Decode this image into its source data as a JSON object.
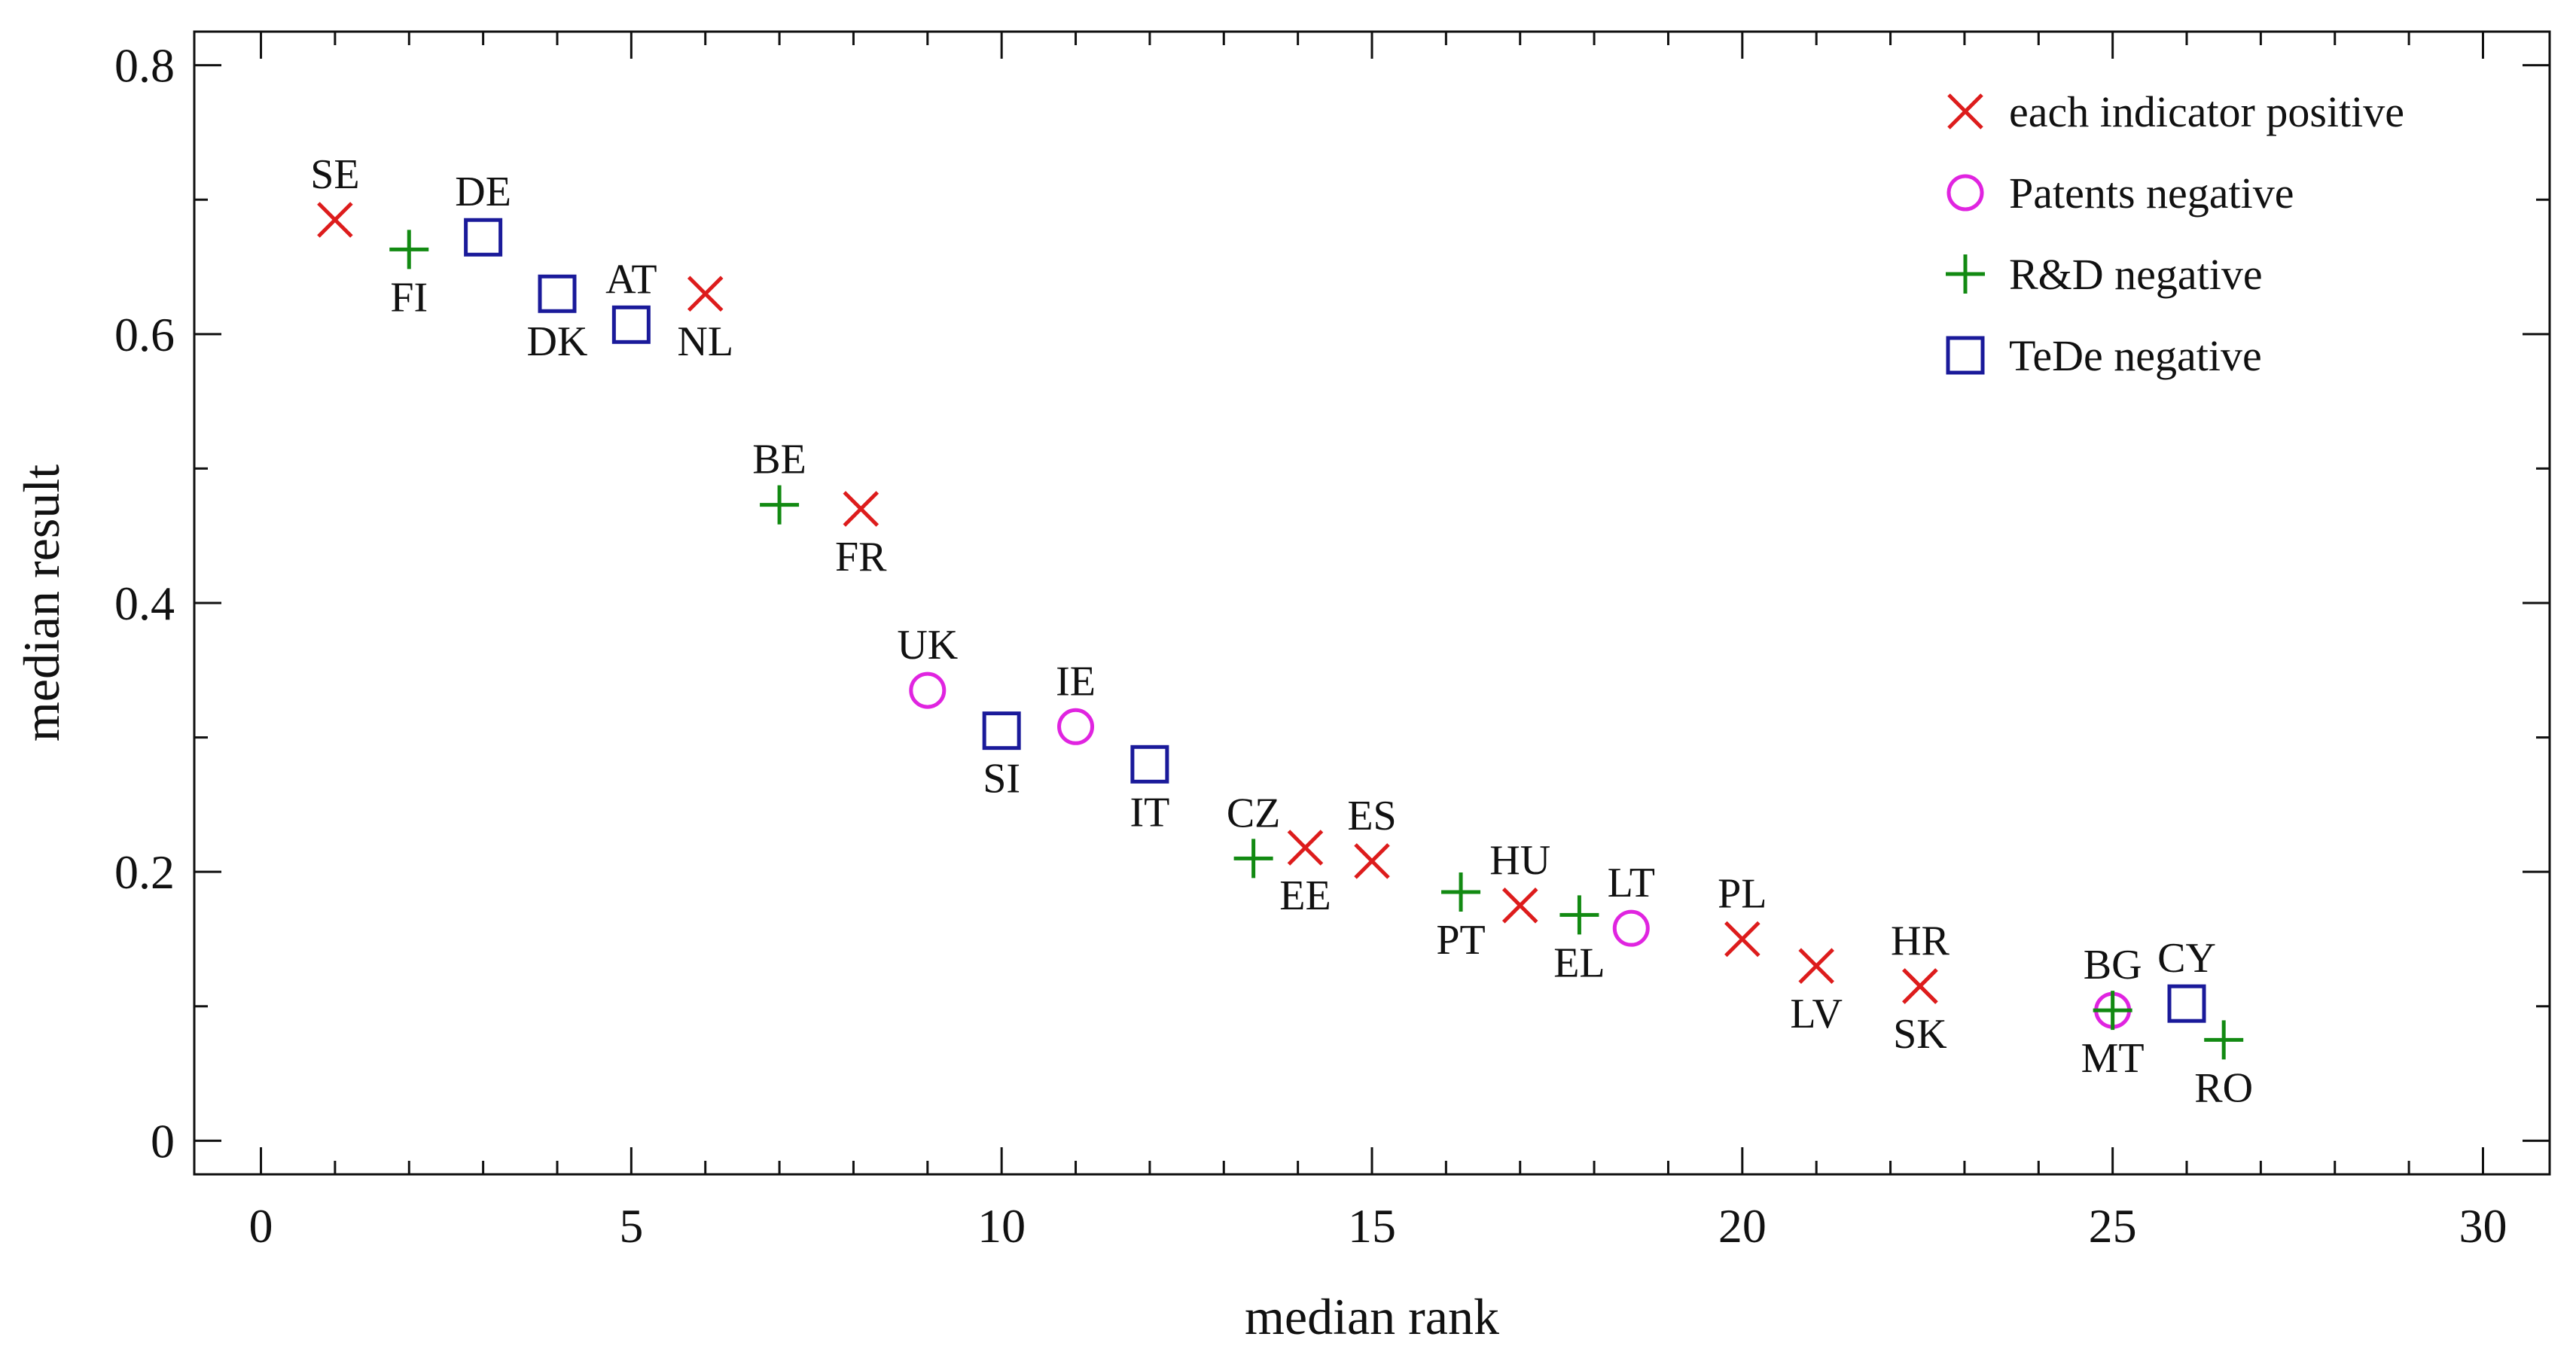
{
  "chart_data": {
    "type": "scatter",
    "title": "",
    "xlabel": "median rank",
    "ylabel": "median result",
    "xlim": [
      -0.9,
      30.9
    ],
    "ylim": [
      -0.025,
      0.825
    ],
    "x_ticks": [
      0,
      5,
      10,
      15,
      20,
      25,
      30
    ],
    "x_tick_labels": [
      "0",
      "5",
      "10",
      "15",
      "20",
      "25",
      "30"
    ],
    "y_ticks": [
      0,
      0.2,
      0.4,
      0.6,
      0.8
    ],
    "y_tick_labels": [
      "0",
      "0.2",
      "0.4",
      "0.6",
      "0.8"
    ],
    "grid": false,
    "legend_position": "top-right",
    "series": [
      {
        "name": "each indicator positive",
        "marker": "x",
        "color": "#dd1c1c",
        "points": [
          {
            "label": "SE",
            "x": 1.0,
            "y": 0.685,
            "label_pos": "above"
          },
          {
            "label": "NL",
            "x": 6.0,
            "y": 0.63,
            "label_pos": "below"
          },
          {
            "label": "FR",
            "x": 8.1,
            "y": 0.47,
            "label_pos": "below"
          },
          {
            "label": "EE",
            "x": 14.1,
            "y": 0.218,
            "label_pos": "below"
          },
          {
            "label": "ES",
            "x": 15.0,
            "y": 0.208,
            "label_pos": "above"
          },
          {
            "label": "HU",
            "x": 17.0,
            "y": 0.175,
            "label_pos": "above"
          },
          {
            "label": "PL",
            "x": 20.0,
            "y": 0.15,
            "label_pos": "above"
          },
          {
            "label": "LV",
            "x": 21.0,
            "y": 0.13,
            "label_pos": "below"
          },
          {
            "label": "HR",
            "x": 22.4,
            "y": 0.115,
            "label_pos": "above"
          },
          {
            "label": "SK",
            "x": 22.4,
            "y": 0.115,
            "label_pos": "below"
          }
        ]
      },
      {
        "name": "Patents negative",
        "marker": "circle",
        "color": "#e024e0",
        "points": [
          {
            "label": "UK",
            "x": 9.0,
            "y": 0.335,
            "label_pos": "above"
          },
          {
            "label": "IE",
            "x": 11.0,
            "y": 0.308,
            "label_pos": "above"
          },
          {
            "label": "LT",
            "x": 18.5,
            "y": 0.158,
            "label_pos": "above-right"
          },
          {
            "label": "BG",
            "x": 25.0,
            "y": 0.097,
            "label_pos": "above"
          }
        ]
      },
      {
        "name": "R&D negative",
        "marker": "plus",
        "color": "#128a12",
        "points": [
          {
            "label": "FI",
            "x": 2.0,
            "y": 0.663,
            "label_pos": "below"
          },
          {
            "label": "BE",
            "x": 7.0,
            "y": 0.473,
            "label_pos": "above"
          },
          {
            "label": "CZ",
            "x": 13.4,
            "y": 0.21,
            "label_pos": "above"
          },
          {
            "label": "PT",
            "x": 16.2,
            "y": 0.185,
            "label_pos": "below"
          },
          {
            "label": "EL",
            "x": 17.8,
            "y": 0.168,
            "label_pos": "below"
          },
          {
            "label": "MT",
            "x": 25.0,
            "y": 0.097,
            "label_pos": "below"
          },
          {
            "label": "RO",
            "x": 26.5,
            "y": 0.075,
            "label_pos": "below"
          }
        ]
      },
      {
        "name": "TeDe negative",
        "marker": "square",
        "color": "#1a1a9a",
        "points": [
          {
            "label": "DE",
            "x": 3.0,
            "y": 0.672,
            "label_pos": "above"
          },
          {
            "label": "DK",
            "x": 4.0,
            "y": 0.63,
            "label_pos": "below"
          },
          {
            "label": "AT",
            "x": 5.0,
            "y": 0.607,
            "label_pos": "above"
          },
          {
            "label": "SI",
            "x": 10.0,
            "y": 0.305,
            "label_pos": "below"
          },
          {
            "label": "IT",
            "x": 12.0,
            "y": 0.28,
            "label_pos": "below"
          },
          {
            "label": "CY",
            "x": 26.0,
            "y": 0.102,
            "label_pos": "above"
          }
        ]
      }
    ]
  }
}
